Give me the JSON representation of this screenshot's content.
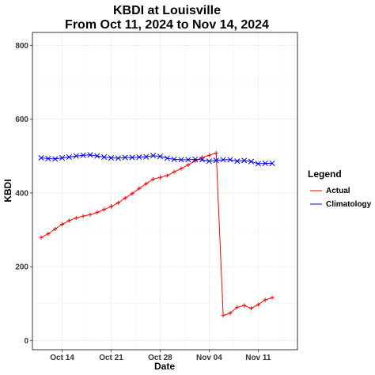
{
  "chart_data": {
    "type": "line",
    "title": "KBDI at Louisville",
    "subtitle": "From Oct 11, 2024 to Nov 14, 2024",
    "xlabel": "Date",
    "ylabel": "KBDI",
    "x_start": "2024-10-11",
    "x": [
      "Oct 11",
      "Oct 12",
      "Oct 13",
      "Oct 14",
      "Oct 15",
      "Oct 16",
      "Oct 17",
      "Oct 18",
      "Oct 19",
      "Oct 20",
      "Oct 21",
      "Oct 22",
      "Oct 23",
      "Oct 24",
      "Oct 25",
      "Oct 26",
      "Oct 27",
      "Oct 28",
      "Oct 29",
      "Oct 30",
      "Oct 31",
      "Nov 1",
      "Nov 2",
      "Nov 3",
      "Nov 4",
      "Nov 5",
      "Nov 6",
      "Nov 7",
      "Nov 8",
      "Nov 9",
      "Nov 10",
      "Nov 11",
      "Nov 12",
      "Nov 13",
      "Nov 14"
    ],
    "x_ticks": [
      "Oct 14",
      "Oct 21",
      "Oct 28",
      "Nov 04",
      "Nov 11"
    ],
    "ylim": [
      -25,
      835
    ],
    "y_ticks": [
      0,
      200,
      400,
      600,
      800
    ],
    "grid": true,
    "legend": {
      "title": "Legend",
      "position": "right"
    },
    "series": [
      {
        "name": "Actual",
        "color": "#ff0000",
        "marker": "plus",
        "values": [
          279,
          289,
          302,
          315,
          325,
          332,
          337,
          341,
          347,
          355,
          363,
          373,
          386,
          398,
          412,
          425,
          437,
          442,
          447,
          457,
          466,
          476,
          487,
          496,
          502,
          508,
          68,
          74,
          90,
          95,
          87,
          97,
          110,
          116,
          null
        ]
      },
      {
        "name": "Climatology",
        "color": "#0000ff",
        "marker": "x",
        "values": [
          495,
          493,
          492,
          495,
          497,
          500,
          502,
          503,
          500,
          497,
          495,
          494,
          496,
          496,
          497,
          498,
          501,
          499,
          494,
          491,
          490,
          490,
          491,
          490,
          486,
          488,
          490,
          490,
          486,
          488,
          485,
          479,
          480,
          480,
          null
        ]
      }
    ]
  }
}
